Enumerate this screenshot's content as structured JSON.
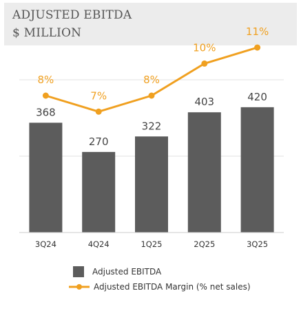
{
  "chart_data": {
    "type": "bar",
    "title_lines": [
      "ADJUSTED EBITDA",
      "$ MILLION"
    ],
    "categories": [
      "3Q24",
      "4Q24",
      "1Q25",
      "2Q25",
      "3Q25"
    ],
    "series": [
      {
        "name": "Adjusted EBITDA",
        "type": "bar",
        "values": [
          368,
          270,
          322,
          403,
          420
        ],
        "labels": [
          "368",
          "270",
          "322",
          "403",
          "420"
        ],
        "color": "#5c5c5c"
      },
      {
        "name": "Adjusted EBITDA Margin (% net sales)",
        "type": "line",
        "values": [
          8,
          7,
          8,
          10,
          11
        ],
        "labels": [
          "8%",
          "7%",
          "8%",
          "10%",
          "11%"
        ],
        "color": "#f0a020"
      }
    ],
    "grid": true,
    "legend": "bottom"
  }
}
